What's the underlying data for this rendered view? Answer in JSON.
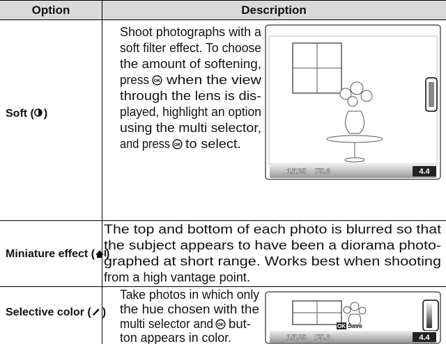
{
  "table": {
    "header": [
      "Option",
      "Description"
    ],
    "rows": [
      {
        "option": [
          "Soft (",
          ")"
        ],
        "description": [
          "Shoot photographs with a",
          "soft filter effect. To choose",
          "the amount of softening,",
          [
            "press",
            "when the view"
          ],
          "through the lens is dis-",
          "played, highlight an option",
          "using the multi selector,",
          [
            "and press",
            "to select."
          ]
        ],
        "screen": {
          "shutter": "1/125",
          "aperture": "F5.6",
          "count": "4.4"
        }
      },
      {
        "option": [
          "Miniature effect (",
          ")"
        ],
        "description": [
          "The top and bottom of each photo is blurred so that",
          "the subject appears to have been a diorama photo-",
          "graphed at short range. Works best when shooting",
          "from a high vantage point."
        ]
      },
      {
        "option": [
          "Selective color (",
          ")"
        ],
        "description": [
          "Take photos in which only",
          "the hue chosen with the",
          [
            "multi selector and",
            "but-"
          ],
          "ton appears in color."
        ],
        "screen": {
          "confirm": "OK",
          "action": "Save",
          "shutter": "1/125",
          "aperture": "F5.6",
          "count": "4.4"
        }
      }
    ]
  }
}
